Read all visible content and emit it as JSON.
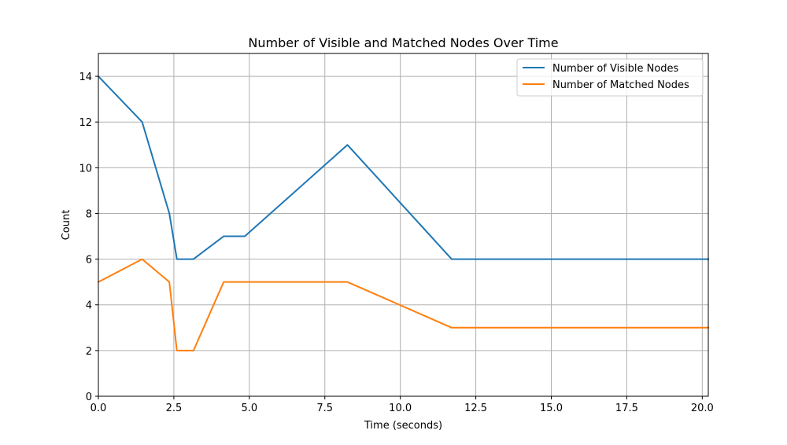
{
  "chart_data": {
    "type": "line",
    "title": "Number of Visible and Matched Nodes Over Time",
    "xlabel": "Time (seconds)",
    "ylabel": "Count",
    "xlim": [
      0,
      20.2
    ],
    "ylim": [
      0,
      15
    ],
    "xticks": [
      0,
      2.5,
      5,
      7.5,
      10,
      12.5,
      15,
      17.5,
      20
    ],
    "xtick_labels": [
      "0.0",
      "2.5",
      "5.0",
      "7.5",
      "10.0",
      "12.5",
      "15.0",
      "17.5",
      "20.0"
    ],
    "yticks": [
      0,
      2,
      4,
      6,
      8,
      10,
      12,
      14
    ],
    "ytick_labels": [
      "0",
      "2",
      "4",
      "6",
      "8",
      "10",
      "12",
      "14"
    ],
    "grid": true,
    "legend_position": "top-right",
    "series": [
      {
        "name": "Number of Visible Nodes",
        "color": "#1f77b4",
        "x": [
          0,
          1.45,
          2.35,
          2.6,
          3.15,
          4.15,
          4.85,
          8.25,
          11.7,
          20.2
        ],
        "y": [
          14,
          12,
          8,
          6,
          6,
          7,
          7,
          11,
          6,
          6
        ]
      },
      {
        "name": "Number of Matched Nodes",
        "color": "#ff7f0e",
        "x": [
          0,
          1.45,
          2.35,
          2.6,
          3.15,
          4.15,
          4.85,
          8.25,
          11.7,
          20.2
        ],
        "y": [
          5,
          6,
          5,
          2,
          2,
          5,
          5,
          5,
          3,
          3
        ]
      }
    ]
  }
}
